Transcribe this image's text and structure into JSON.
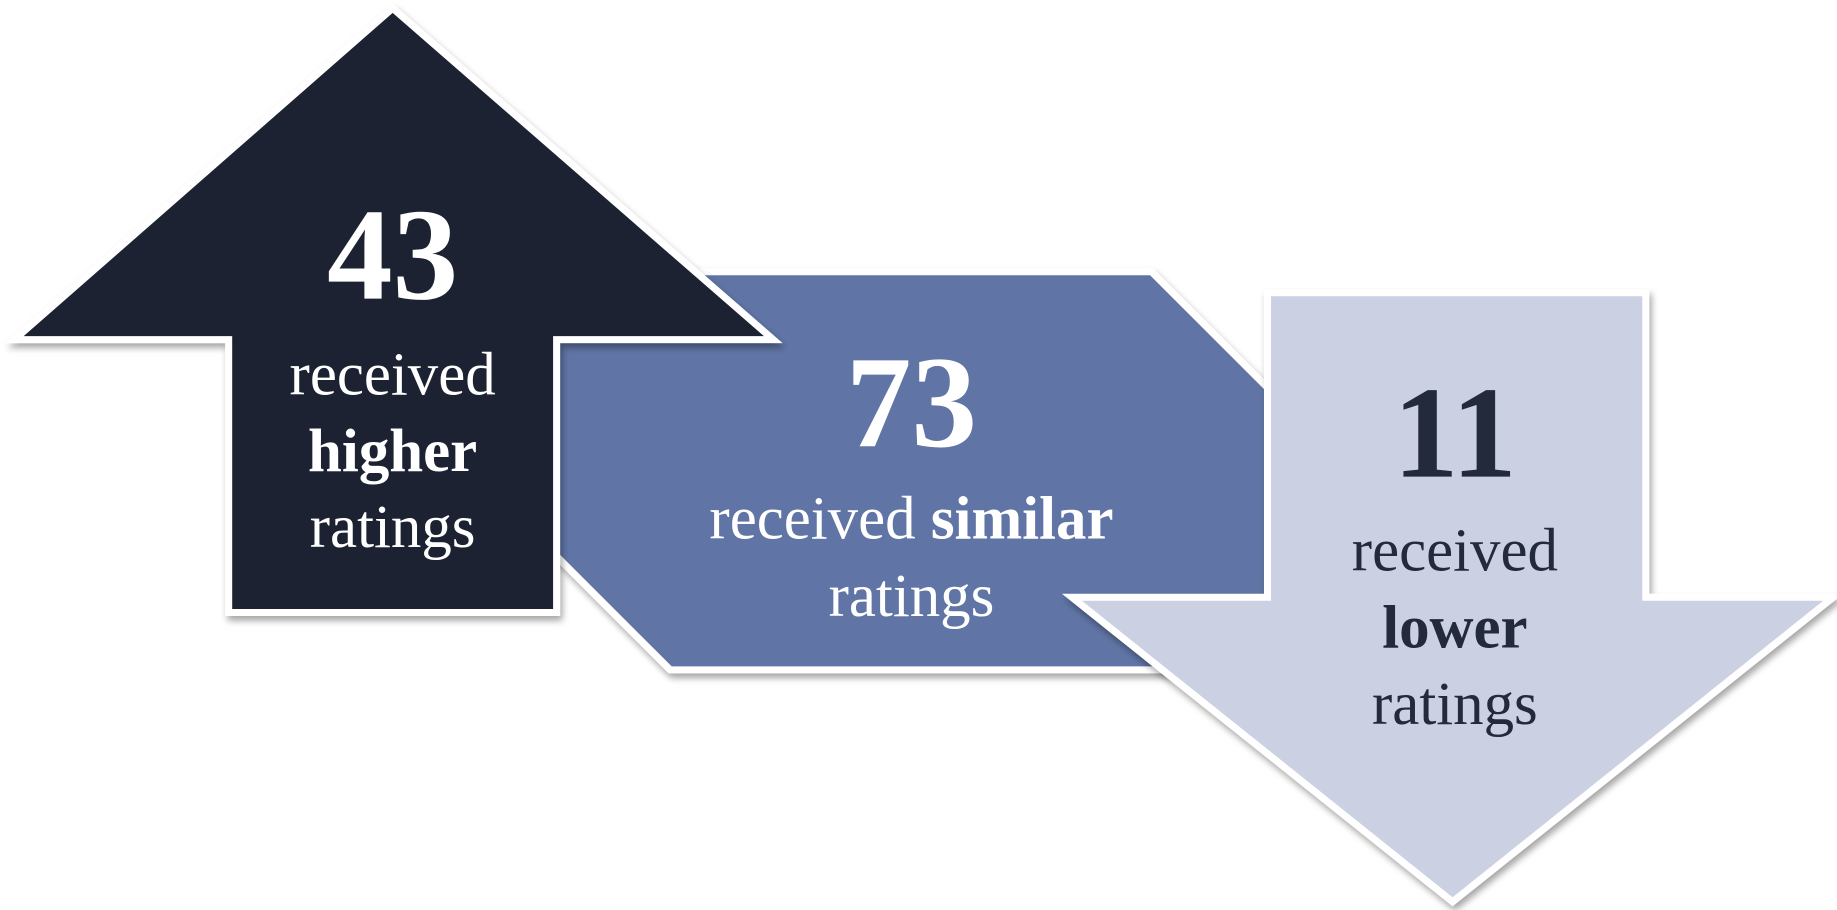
{
  "items": [
    {
      "number": 43,
      "prefix": "received",
      "emphasis": "higher",
      "suffix": "ratings"
    },
    {
      "number": 73,
      "prefix": "received",
      "emphasis": "similar",
      "suffix": "ratings"
    },
    {
      "number": 11,
      "prefix": "received",
      "emphasis": "lower",
      "suffix": "ratings"
    }
  ]
}
